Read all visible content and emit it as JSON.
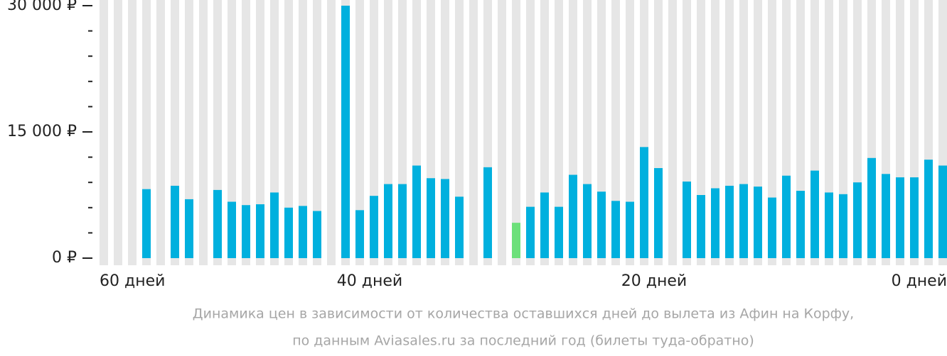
{
  "chart_data": {
    "type": "bar",
    "caption": [
      "Динамика цен в зависимости от количества оставшихся дней до вылета из Афин на Корфу,",
      "по данным Aviasales.ru за последний год (билеты туда-обратно)"
    ],
    "categories": [
      "60 дней",
      null,
      null,
      null,
      null,
      null,
      null,
      null,
      null,
      null,
      null,
      null,
      null,
      null,
      null,
      null,
      null,
      null,
      null,
      "40 дней",
      null,
      null,
      null,
      null,
      null,
      null,
      null,
      null,
      null,
      null,
      null,
      null,
      null,
      null,
      null,
      null,
      null,
      null,
      null,
      "20 дней",
      null,
      null,
      null,
      null,
      null,
      null,
      null,
      null,
      null,
      null,
      null,
      null,
      null,
      null,
      null,
      null,
      null,
      null,
      null,
      "0 дней"
    ],
    "values": [
      null,
      null,
      null,
      8200,
      null,
      8600,
      7000,
      null,
      8100,
      6700,
      6300,
      6400,
      7800,
      6000,
      6200,
      5600,
      null,
      30000,
      5700,
      7400,
      8800,
      8800,
      11000,
      9500,
      9400,
      7300,
      null,
      10800,
      null,
      4200,
      6100,
      7800,
      6100,
      9900,
      8800,
      7900,
      6800,
      6700,
      13200,
      10700,
      null,
      9100,
      7500,
      8300,
      8600,
      8800,
      8500,
      7200,
      9800,
      8000,
      10400,
      7800,
      7600,
      9000,
      11900,
      10000,
      9600,
      9600,
      11700,
      11000
    ],
    "color": "#00b0de",
    "highlight_color": "#6ce07a",
    "highlight_index": 29,
    "background_color": "#e6e6e6",
    "ylim": [
      0,
      30000
    ],
    "yticks": [
      {
        "value": 0,
        "label": "0 ₽"
      },
      {
        "value": 15000,
        "label": "15 000 ₽"
      },
      {
        "value": 30000,
        "label": "30 000 ₽"
      }
    ],
    "minor_yticks": [
      3000,
      6000,
      9000,
      12000,
      18000,
      21000,
      24000,
      27000
    ]
  }
}
